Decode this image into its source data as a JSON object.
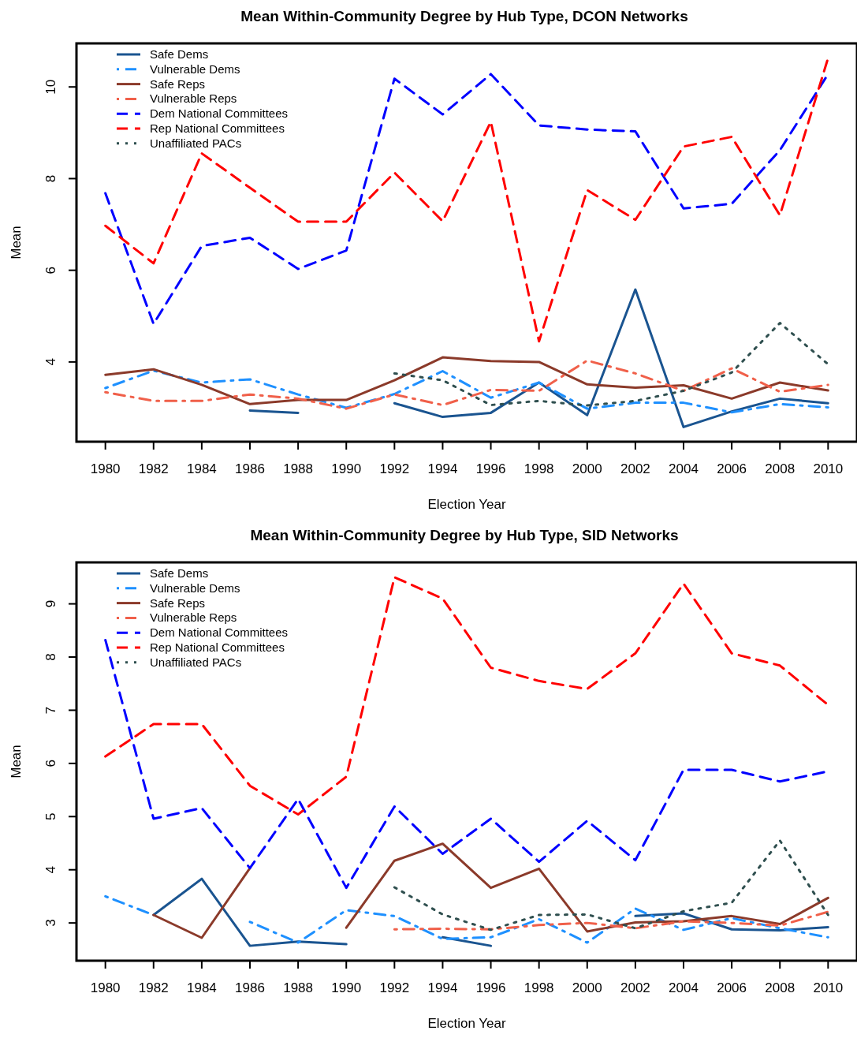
{
  "chart_data": [
    {
      "type": "line",
      "title": "Mean Within-Community Degree by Hub Type, DCON Networks",
      "xlabel": "Election Year",
      "ylabel": "Mean",
      "x": [
        1980,
        1982,
        1984,
        1986,
        1988,
        1990,
        1992,
        1994,
        1996,
        1998,
        2000,
        2002,
        2004,
        2006,
        2008,
        2010
      ],
      "xlim": [
        1978.8,
        2011.2
      ],
      "xticks": [
        1980,
        1982,
        1984,
        1986,
        1988,
        1990,
        1992,
        1994,
        1996,
        1998,
        2000,
        2002,
        2004,
        2006,
        2008,
        2010
      ],
      "ylim": [
        2.26,
        10.95
      ],
      "yticks": [
        4,
        6,
        8,
        10
      ],
      "grid": false,
      "legend": "top left",
      "marker": "none",
      "series": [
        {
          "name": "Safe Dems",
          "color": "#1a5490",
          "line_style": "solid",
          "values": [
            null,
            null,
            null,
            2.94,
            2.89,
            null,
            3.1,
            2.8,
            2.89,
            3.55,
            2.84,
            5.58,
            2.58,
            2.92,
            3.2,
            3.1
          ]
        },
        {
          "name": "Vulnerable Dems",
          "color": "#1e90ff",
          "line_style": "dashdot",
          "values": [
            3.43,
            3.81,
            3.55,
            3.62,
            3.29,
            3.0,
            3.3,
            3.8,
            3.22,
            3.55,
            2.98,
            3.11,
            3.11,
            2.9,
            3.08,
            3.01
          ]
        },
        {
          "name": "Safe Reps",
          "color": "#8b3a2a",
          "line_style": "solid",
          "values": [
            3.72,
            3.84,
            3.5,
            3.08,
            3.17,
            3.17,
            3.6,
            4.1,
            4.02,
            4.0,
            3.51,
            3.44,
            3.49,
            3.2,
            3.55,
            3.38
          ]
        },
        {
          "name": "Vulnerable Reps",
          "color": "#f0604a",
          "line_style": "dashdot",
          "values": [
            3.34,
            3.15,
            3.15,
            3.29,
            3.2,
            2.98,
            3.29,
            3.06,
            3.39,
            3.37,
            4.03,
            3.75,
            3.37,
            3.86,
            3.35,
            3.5
          ]
        },
        {
          "name": "Dem National Committees",
          "color": "#0000ff",
          "line_style": "dashed",
          "values": [
            7.68,
            4.83,
            6.53,
            6.71,
            6.03,
            6.43,
            10.18,
            9.4,
            10.28,
            9.16,
            9.07,
            9.03,
            7.35,
            7.45,
            8.62,
            10.28
          ]
        },
        {
          "name": "Rep National Committees",
          "color": "#ff0000",
          "line_style": "dashed",
          "values": [
            6.97,
            6.15,
            8.55,
            7.8,
            7.06,
            7.06,
            8.13,
            7.07,
            9.24,
            4.45,
            7.75,
            7.1,
            8.7,
            8.91,
            7.2,
            10.63
          ]
        },
        {
          "name": "Unaffiliated PACs",
          "color": "#2f4f4f",
          "line_style": "dotted",
          "values": [
            null,
            null,
            null,
            null,
            null,
            null,
            3.75,
            3.6,
            3.06,
            3.15,
            3.05,
            3.15,
            3.37,
            3.77,
            4.85,
            3.95
          ]
        }
      ]
    },
    {
      "type": "line",
      "title": "Mean Within-Community Degree by Hub Type, SID Networks",
      "xlabel": "Election Year",
      "ylabel": "Mean",
      "x": [
        1980,
        1982,
        1984,
        1986,
        1988,
        1990,
        1992,
        1994,
        1996,
        1998,
        2000,
        2002,
        2004,
        2006,
        2008,
        2010
      ],
      "xlim": [
        1978.8,
        2011.2
      ],
      "xticks": [
        1980,
        1982,
        1984,
        1986,
        1988,
        1990,
        1992,
        1994,
        1996,
        1998,
        2000,
        2002,
        2004,
        2006,
        2008,
        2010
      ],
      "ylim": [
        2.29,
        9.78
      ],
      "yticks": [
        3,
        4,
        5,
        6,
        7,
        8,
        9
      ],
      "grid": false,
      "legend": "top left",
      "marker": "none",
      "series": [
        {
          "name": "Safe Dems",
          "color": "#1a5490",
          "line_style": "solid",
          "values": [
            null,
            3.15,
            3.83,
            2.57,
            2.65,
            2.6,
            null,
            2.73,
            2.57,
            null,
            null,
            3.13,
            3.18,
            2.88,
            2.86,
            2.92
          ]
        },
        {
          "name": "Vulnerable Dems",
          "color": "#1e90ff",
          "line_style": "dashdot",
          "values": [
            3.5,
            3.15,
            null,
            3.02,
            2.63,
            3.24,
            3.13,
            2.7,
            2.73,
            3.07,
            2.63,
            3.27,
            2.87,
            3.09,
            2.9,
            2.73
          ]
        },
        {
          "name": "Safe Reps",
          "color": "#8b3a2a",
          "line_style": "solid",
          "values": [
            null,
            3.15,
            2.72,
            4.03,
            null,
            2.91,
            4.17,
            4.49,
            3.66,
            4.02,
            2.84,
            3.01,
            3.03,
            3.13,
            2.98,
            3.47
          ]
        },
        {
          "name": "Vulnerable Reps",
          "color": "#f0604a",
          "line_style": "dashdot",
          "values": [
            null,
            null,
            null,
            null,
            null,
            null,
            2.88,
            2.89,
            2.88,
            2.96,
            3.0,
            2.9,
            3.03,
            3.0,
            2.95,
            3.21
          ]
        },
        {
          "name": "Dem National Committees",
          "color": "#0000ff",
          "line_style": "dashed",
          "values": [
            8.32,
            4.96,
            5.16,
            4.03,
            5.33,
            3.66,
            5.19,
            4.3,
            4.96,
            4.15,
            4.92,
            4.18,
            5.88,
            5.88,
            5.66,
            5.85
          ]
        },
        {
          "name": "Rep National Committees",
          "color": "#ff0000",
          "line_style": "dashed",
          "values": [
            6.13,
            6.74,
            6.74,
            5.58,
            5.04,
            5.75,
            9.5,
            9.1,
            7.8,
            7.55,
            7.4,
            8.07,
            9.38,
            8.07,
            7.84,
            7.1
          ]
        },
        {
          "name": "Unaffiliated PACs",
          "color": "#2f4f4f",
          "line_style": "dotted",
          "values": [
            null,
            null,
            null,
            null,
            null,
            null,
            3.67,
            3.16,
            2.87,
            3.15,
            3.16,
            2.9,
            3.22,
            3.38,
            4.55,
            3.15
          ]
        }
      ]
    }
  ]
}
